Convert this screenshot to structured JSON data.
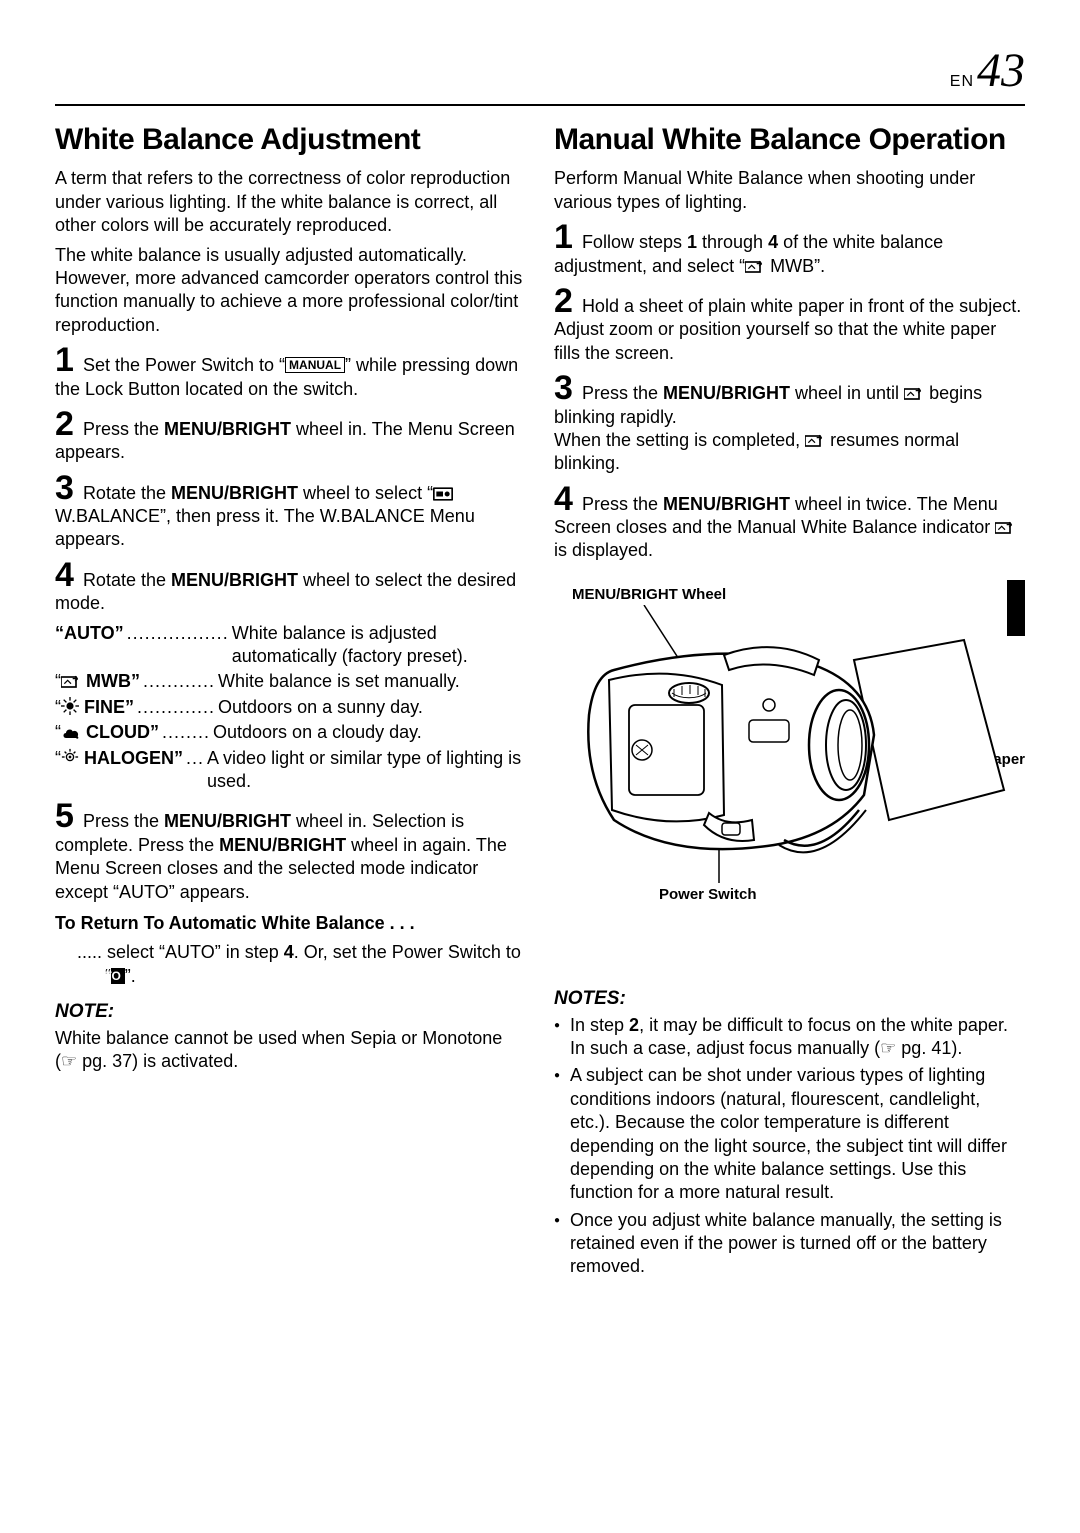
{
  "header": {
    "lang": "EN",
    "page": "43"
  },
  "left": {
    "title": "White Balance Adjustment",
    "intro1": "A term that refers to the correctness of color reproduction under various lighting. If the white balance is correct, all other colors will be accurately reproduced.",
    "intro2": "The white balance is usually adjusted automatically. However, more advanced camcorder operators control this function manually to achieve a more professional color/tint reproduction.",
    "step1a": "Set the Power Switch to “",
    "step1_box": "MANUAL",
    "step1b": "” while pressing down the Lock Button located on the switch.",
    "step2a": "Press the ",
    "step2_bold": "MENU/BRIGHT",
    "step2b": " wheel in. The Menu Screen appears.",
    "step3a": "Rotate the ",
    "step3_bold": "MENU/BRIGHT",
    "step3b": " wheel to select “",
    "step3c": " W.BALANCE”, then press it. The W.BALANCE Menu appears.",
    "step4a": "Rotate the ",
    "step4_bold": "MENU/BRIGHT",
    "step4b": " wheel to select the desired mode.",
    "modes": {
      "auto": {
        "label": "“AUTO”",
        "dots": ".................",
        "desc": "White balance is adjusted automatically (factory preset)."
      },
      "mwb": {
        "label": " MWB”",
        "prefix": "“",
        "dots": "............",
        "desc": "White balance is set manually."
      },
      "fine": {
        "label": " FINE”",
        "prefix": "“",
        "dots": ".............",
        "desc": "Outdoors on a sunny day."
      },
      "cloud": {
        "label": " CLOUD”",
        "prefix": "“",
        "dots": "........",
        "desc": "Outdoors on a cloudy day."
      },
      "halo": {
        "label": " HALOGEN”",
        "prefix": "“",
        "dots": "...",
        "desc": "A video light or similar type of lighting is used."
      }
    },
    "step5a": "Press the ",
    "step5_bold": "MENU/BRIGHT",
    "step5b": " wheel in. Selection is complete. Press the ",
    "step5_bold2": "MENU/BRIGHT",
    "step5c": " wheel in again. The Menu Screen closes and the selected mode indicator except “AUTO” appears.",
    "return_head": "To Return To Automatic White Balance . . .",
    "return_body_a": " select “AUTO” in step ",
    "return_body_bold": "4",
    "return_body_b": ". Or, set the Power Switch to “",
    "return_box": "AUTO",
    "return_body_c": "”.",
    "note_label": "NOTE:",
    "note_body": "White balance cannot be used when Sepia or Monotone (☞ pg. 37) is activated."
  },
  "right": {
    "title": "Manual White Balance Operation",
    "intro": "Perform Manual White Balance when shooting under various types of lighting.",
    "step1a": "Follow steps ",
    "step1_b1": "1",
    "step1b": " through ",
    "step1_b4": "4",
    "step1c": " of the white balance adjustment, and select “",
    "step1d": " MWB”.",
    "step2": "Hold a sheet of plain white paper in front of the subject. Adjust zoom or position yourself so that the white paper fills the screen.",
    "step3a": "Press the ",
    "step3_bold": "MENU/BRIGHT",
    "step3b": " wheel in until ",
    "step3c": " begins blinking rapidly.",
    "step3d": "When the setting is completed, ",
    "step3e": " resumes normal blinking.",
    "step4a": "Press the ",
    "step4_bold": "MENU/BRIGHT",
    "step4b": " wheel in twice. The Menu Screen closes and the Manual White Balance indicator ",
    "step4c": " is displayed.",
    "fig": {
      "wheel": "MENU/BRIGHT Wheel",
      "paper": "White paper",
      "switch": "Power Switch"
    },
    "notes_label": "NOTES:",
    "notes": [
      "In step <b>2</b>, it may be difficult to focus on the white paper. In such a case, adjust focus manually (☞ pg. 41).",
      "A subject can be shot under various types of lighting conditions indoors (natural, flourescent, candlelight, etc.). Because the color temperature is different depending on the light source, the subject tint will differ depending on the white balance settings. Use this function for a more natural result.",
      "Once you adjust white balance manually, the setting is retained even if the power is turned off or the battery removed."
    ]
  }
}
